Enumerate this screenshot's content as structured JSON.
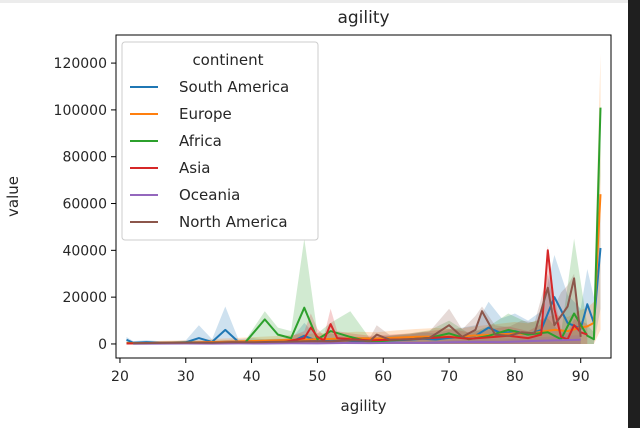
{
  "chart_data": {
    "type": "line",
    "title": "agility",
    "xlabel": "agility",
    "ylabel": "value",
    "xlim": [
      19.4,
      94.6
    ],
    "ylim": [
      -6000,
      132000
    ],
    "xticks": [
      20,
      30,
      40,
      50,
      60,
      70,
      80,
      90
    ],
    "yticks": [
      0,
      20000,
      40000,
      60000,
      80000,
      100000,
      120000
    ],
    "grid": false,
    "legend": {
      "title": "continent",
      "placement": "top-left"
    },
    "series": [
      {
        "name": "South America",
        "color": "#1f77b4",
        "x": [
          21,
          22,
          24,
          26,
          28,
          30,
          32,
          34,
          36,
          38,
          40,
          42,
          44,
          46,
          48,
          50,
          52,
          54,
          56,
          58,
          60,
          62,
          64,
          66,
          68,
          70,
          72,
          74,
          76,
          78,
          80,
          82,
          84,
          86,
          88,
          90,
          91,
          92,
          93
        ],
        "y": [
          1800,
          500,
          800,
          600,
          500,
          700,
          2500,
          900,
          6000,
          900,
          1200,
          800,
          1000,
          900,
          3500,
          1200,
          2000,
          1500,
          1100,
          1300,
          1400,
          1600,
          1800,
          2200,
          1900,
          2600,
          3000,
          3500,
          7000,
          4500,
          5500,
          4000,
          6000,
          20000,
          9000,
          6500,
          17000,
          9000,
          41000
        ],
        "band": [
          [
            0,
            3000
          ],
          [
            0,
            1200
          ],
          [
            0,
            1600
          ],
          [
            0,
            1200
          ],
          [
            0,
            1100
          ],
          [
            0,
            1500
          ],
          [
            0,
            8000
          ],
          [
            0,
            2000
          ],
          [
            0,
            16000
          ],
          [
            0,
            2000
          ],
          [
            0,
            2500
          ],
          [
            0,
            2000
          ],
          [
            0,
            2300
          ],
          [
            0,
            2000
          ],
          [
            0,
            9000
          ],
          [
            0,
            2800
          ],
          [
            0,
            4500
          ],
          [
            0,
            3300
          ],
          [
            0,
            2600
          ],
          [
            0,
            3000
          ],
          [
            0,
            3200
          ],
          [
            0,
            3600
          ],
          [
            0,
            4000
          ],
          [
            0,
            5000
          ],
          [
            0,
            4500
          ],
          [
            0,
            6000
          ],
          [
            0,
            7000
          ],
          [
            0,
            8000
          ],
          [
            0,
            18000
          ],
          [
            0,
            11000
          ],
          [
            0,
            13000
          ],
          [
            0,
            10000
          ],
          [
            0,
            14000
          ],
          [
            0,
            38000
          ],
          [
            0,
            21000
          ],
          [
            0,
            15000
          ],
          [
            0,
            32000
          ],
          [
            0,
            20000
          ],
          [
            15000,
            62000
          ]
        ]
      },
      {
        "name": "Europe",
        "color": "#ff7f0e",
        "x": [
          21,
          23,
          26,
          29,
          32,
          35,
          38,
          41,
          44,
          47,
          50,
          53,
          56,
          59,
          62,
          65,
          68,
          71,
          74,
          77,
          80,
          82,
          84,
          86,
          88,
          90,
          91,
          92,
          93
        ],
        "y": [
          400,
          300,
          500,
          600,
          700,
          900,
          1100,
          1300,
          1500,
          1800,
          2000,
          2200,
          2400,
          2300,
          2700,
          3000,
          3200,
          3000,
          3600,
          4000,
          4500,
          4200,
          5200,
          6000,
          5500,
          7000,
          7500,
          9000,
          64000
        ],
        "band": [
          [
            0,
            1200
          ],
          [
            0,
            900
          ],
          [
            0,
            1300
          ],
          [
            0,
            1500
          ],
          [
            0,
            1700
          ],
          [
            0,
            2200
          ],
          [
            0,
            2600
          ],
          [
            0,
            3000
          ],
          [
            0,
            3400
          ],
          [
            0,
            4000
          ],
          [
            0,
            4500
          ],
          [
            0,
            4800
          ],
          [
            0,
            5200
          ],
          [
            0,
            5000
          ],
          [
            0,
            5800
          ],
          [
            0,
            6400
          ],
          [
            0,
            6800
          ],
          [
            0,
            6400
          ],
          [
            0,
            7600
          ],
          [
            0,
            8400
          ],
          [
            0,
            9400
          ],
          [
            0,
            8800
          ],
          [
            0,
            10800
          ],
          [
            0,
            12500
          ],
          [
            0,
            11500
          ],
          [
            0,
            14500
          ],
          [
            0,
            15500
          ],
          [
            0,
            18000
          ],
          [
            6000,
            124000
          ]
        ]
      },
      {
        "name": "Africa",
        "color": "#2ca02c",
        "x": [
          21,
          24,
          27,
          30,
          33,
          36,
          39,
          42,
          44,
          46,
          48,
          50,
          52,
          55,
          58,
          61,
          64,
          67,
          70,
          73,
          76,
          79,
          82,
          85,
          87,
          89,
          91,
          92,
          93
        ],
        "y": [
          300,
          200,
          400,
          500,
          400,
          600,
          500,
          10500,
          4000,
          2500,
          15500,
          2000,
          5500,
          3000,
          800,
          1500,
          2000,
          2600,
          4500,
          2000,
          3500,
          6000,
          4000,
          5000,
          2000,
          13000,
          3500,
          2000,
          101000
        ],
        "band": [
          [
            0,
            800
          ],
          [
            0,
            600
          ],
          [
            0,
            1000
          ],
          [
            0,
            1200
          ],
          [
            0,
            1000
          ],
          [
            0,
            1500
          ],
          [
            0,
            1300
          ],
          [
            0,
            14000
          ],
          [
            0,
            7000
          ],
          [
            0,
            5500
          ],
          [
            0,
            45000
          ],
          [
            0,
            4500
          ],
          [
            0,
            9000
          ],
          [
            0,
            14000
          ],
          [
            0,
            2200
          ],
          [
            0,
            3500
          ],
          [
            0,
            4500
          ],
          [
            0,
            5800
          ],
          [
            0,
            10000
          ],
          [
            0,
            4500
          ],
          [
            0,
            7500
          ],
          [
            0,
            13000
          ],
          [
            0,
            9000
          ],
          [
            0,
            11000
          ],
          [
            0,
            4500
          ],
          [
            0,
            45000
          ],
          [
            0,
            8000
          ],
          [
            0,
            5000
          ],
          [
            72000,
            101500
          ]
        ]
      },
      {
        "name": "Asia",
        "color": "#d62728",
        "x": [
          21,
          24,
          27,
          30,
          33,
          36,
          39,
          42,
          45,
          48,
          49,
          50,
          51,
          52,
          53,
          55,
          58,
          61,
          64,
          67,
          70,
          73,
          76,
          79,
          82,
          84,
          85,
          86,
          87,
          88,
          89,
          90,
          91
        ],
        "y": [
          200,
          300,
          400,
          300,
          500,
          400,
          600,
          500,
          900,
          2500,
          7000,
          3000,
          1500,
          8500,
          2500,
          2000,
          1500,
          1800,
          2000,
          2500,
          3000,
          2200,
          2800,
          3500,
          2500,
          4000,
          40000,
          15000,
          3000,
          2000,
          8000,
          5000,
          4000
        ],
        "band": [
          [
            0,
            600
          ],
          [
            0,
            800
          ],
          [
            0,
            1000
          ],
          [
            0,
            800
          ],
          [
            0,
            1200
          ],
          [
            0,
            1000
          ],
          [
            0,
            1500
          ],
          [
            0,
            1300
          ],
          [
            0,
            2200
          ],
          [
            0,
            5500
          ],
          [
            0,
            13000
          ],
          [
            0,
            6500
          ],
          [
            0,
            3500
          ],
          [
            0,
            15000
          ],
          [
            0,
            5500
          ],
          [
            0,
            4500
          ],
          [
            0,
            3500
          ],
          [
            0,
            4000
          ],
          [
            0,
            4500
          ],
          [
            0,
            5500
          ],
          [
            0,
            6500
          ],
          [
            0,
            5000
          ],
          [
            0,
            6200
          ],
          [
            0,
            7500
          ],
          [
            0,
            5500
          ],
          [
            0,
            8500
          ],
          [
            0,
            42000
          ],
          [
            0,
            20000
          ],
          [
            0,
            6500
          ],
          [
            0,
            4500
          ],
          [
            0,
            10500
          ],
          [
            0,
            10000
          ],
          [
            0,
            8500
          ]
        ]
      },
      {
        "name": "Oceania",
        "color": "#9467bd",
        "x": [
          22,
          26,
          30,
          34,
          38,
          42,
          46,
          50,
          54,
          58,
          62,
          66,
          70,
          74,
          78,
          82,
          86,
          90
        ],
        "y": [
          100,
          150,
          200,
          150,
          250,
          200,
          300,
          250,
          400,
          350,
          500,
          450,
          700,
          900,
          800,
          1200,
          1500,
          1800
        ],
        "band": [
          [
            0,
            300
          ],
          [
            0,
            400
          ],
          [
            0,
            500
          ],
          [
            0,
            400
          ],
          [
            0,
            600
          ],
          [
            0,
            500
          ],
          [
            0,
            700
          ],
          [
            0,
            600
          ],
          [
            0,
            900
          ],
          [
            0,
            800
          ],
          [
            0,
            1100
          ],
          [
            0,
            1000
          ],
          [
            0,
            1500
          ],
          [
            0,
            2000
          ],
          [
            0,
            1800
          ],
          [
            0,
            2600
          ],
          [
            0,
            3200
          ],
          [
            0,
            3800
          ]
        ]
      },
      {
        "name": "North America",
        "color": "#8c564b",
        "x": [
          22,
          25,
          28,
          31,
          34,
          37,
          40,
          43,
          46,
          49,
          52,
          55,
          58,
          59,
          61,
          64,
          67,
          70,
          72,
          74,
          75,
          77,
          79,
          81,
          83,
          85,
          86,
          87,
          88,
          89,
          90
        ],
        "y": [
          300,
          400,
          500,
          600,
          500,
          800,
          700,
          900,
          1000,
          1200,
          1100,
          1500,
          1300,
          4000,
          1800,
          2000,
          2500,
          8000,
          3000,
          6000,
          14000,
          4000,
          3500,
          5000,
          4500,
          24000,
          8000,
          12000,
          16000,
          28000,
          3000
        ],
        "band": [
          [
            0,
            800
          ],
          [
            0,
            1000
          ],
          [
            0,
            1200
          ],
          [
            0,
            1400
          ],
          [
            0,
            1200
          ],
          [
            0,
            1800
          ],
          [
            0,
            1600
          ],
          [
            0,
            2000
          ],
          [
            0,
            2200
          ],
          [
            0,
            2600
          ],
          [
            0,
            2400
          ],
          [
            0,
            3200
          ],
          [
            0,
            2800
          ],
          [
            0,
            8000
          ],
          [
            0,
            3800
          ],
          [
            0,
            4200
          ],
          [
            0,
            5200
          ],
          [
            0,
            15000
          ],
          [
            0,
            6200
          ],
          [
            0,
            12000
          ],
          [
            0,
            16000
          ],
          [
            0,
            8000
          ],
          [
            0,
            7200
          ],
          [
            0,
            10000
          ],
          [
            0,
            9200
          ],
          [
            0,
            30000
          ],
          [
            0,
            16000
          ],
          [
            0,
            22000
          ],
          [
            0,
            25000
          ],
          [
            0,
            30000
          ],
          [
            0,
            6500
          ]
        ]
      }
    ]
  }
}
